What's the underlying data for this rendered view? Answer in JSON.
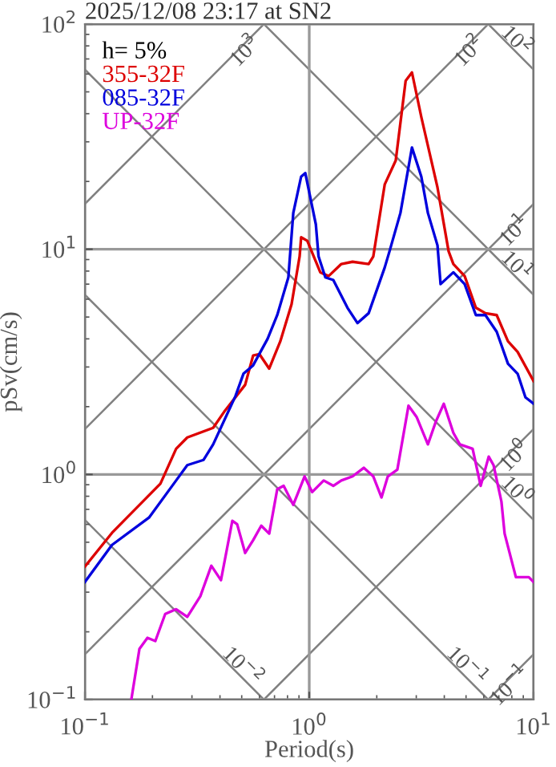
{
  "chart_data": {
    "type": "line",
    "title": "2025/12/08 23:17 at SN2",
    "xlabel": "Period(s)",
    "ylabel": "pSv(cm/s)",
    "legend_title": "h= 5%",
    "legend": "top left",
    "log": "xy",
    "grid": true,
    "xlim": [
      0.1,
      10
    ],
    "ylim": [
      0.1,
      100
    ],
    "xticks": [
      {
        "value": 0.1,
        "label": "10$^{−1}$"
      },
      {
        "value": 1,
        "label": "10$^{0}$"
      },
      {
        "value": 10,
        "label": "10$^{1}$"
      }
    ],
    "yticks": [
      {
        "value": 0.1,
        "label": "10$^{−1}$"
      },
      {
        "value": 1,
        "label": "10$^{0}$"
      },
      {
        "value": 10,
        "label": "10$^{1}$"
      },
      {
        "value": 100,
        "label": "10$^{2}$"
      }
    ],
    "series": [
      {
        "name": "355-32F",
        "color": "#dd0000",
        "x": [
          0.1,
          0.132,
          0.217,
          0.255,
          0.286,
          0.373,
          0.418,
          0.518,
          0.562,
          0.6,
          0.663,
          0.743,
          0.834,
          0.906,
          0.92,
          0.98,
          1.12,
          1.22,
          1.39,
          1.56,
          1.84,
          1.93,
          2.17,
          2.43,
          2.69,
          2.87,
          3.16,
          3.73,
          4.18,
          4.39,
          4.93,
          5.53,
          6.1,
          6.85,
          7.69,
          8.49,
          10
        ],
        "values": [
          0.39,
          0.55,
          0.91,
          1.3,
          1.46,
          1.61,
          1.9,
          2.5,
          3.37,
          3.42,
          2.95,
          3.9,
          5.7,
          9.3,
          11.3,
          10.9,
          7.9,
          7.6,
          8.6,
          8.8,
          8.6,
          9.3,
          19.4,
          24.8,
          56,
          61,
          38.6,
          18.8,
          9.8,
          8.6,
          7.6,
          5.5,
          5.2,
          5.1,
          3.9,
          3.5,
          2.6
        ]
      },
      {
        "name": "085-32F",
        "color": "#0000dd",
        "x": [
          0.1,
          0.132,
          0.193,
          0.255,
          0.286,
          0.338,
          0.373,
          0.469,
          0.509,
          0.562,
          0.652,
          0.72,
          0.807,
          0.849,
          0.92,
          0.96,
          1.07,
          1.1,
          1.18,
          1.28,
          1.48,
          1.64,
          1.84,
          2.17,
          2.28,
          2.55,
          2.87,
          3.16,
          3.38,
          3.73,
          3.85,
          4.39,
          4.93,
          5.53,
          6.1,
          6.85,
          7.69,
          8.49,
          9.2,
          10
        ],
        "values": [
          0.333,
          0.486,
          0.643,
          0.94,
          1.1,
          1.16,
          1.36,
          2.23,
          2.8,
          3.05,
          4.0,
          5.1,
          7.5,
          14.5,
          21,
          21.8,
          12.9,
          9.3,
          7.5,
          7.3,
          5.5,
          4.7,
          5.2,
          8.3,
          9.8,
          14.5,
          28.3,
          21,
          14.5,
          10.4,
          7.0,
          7.9,
          7.0,
          5.1,
          5.1,
          4.3,
          3.1,
          2.8,
          2.2,
          2.06
        ]
      },
      {
        "name": "UP-32F",
        "color": "#dd00dd",
        "x": [
          0.161,
          0.175,
          0.19,
          0.206,
          0.228,
          0.255,
          0.286,
          0.327,
          0.366,
          0.404,
          0.454,
          0.477,
          0.518,
          0.562,
          0.611,
          0.663,
          0.72,
          0.769,
          0.849,
          0.953,
          1.03,
          1.16,
          1.28,
          1.39,
          1.56,
          1.75,
          1.93,
          2.1,
          2.24,
          2.47,
          2.77,
          3.01,
          3.38,
          3.67,
          3.98,
          4.39,
          4.69,
          5.35,
          5.81,
          6.31,
          6.63,
          7.19,
          7.43,
          8.34,
          9.52,
          10
        ],
        "values": [
          0.1,
          0.168,
          0.188,
          0.182,
          0.24,
          0.252,
          0.233,
          0.288,
          0.393,
          0.339,
          0.622,
          0.601,
          0.448,
          0.51,
          0.592,
          0.546,
          0.86,
          0.89,
          0.733,
          0.98,
          0.835,
          0.94,
          0.89,
          0.94,
          0.98,
          1.07,
          0.98,
          0.79,
          0.98,
          1.05,
          2.02,
          1.8,
          1.36,
          1.72,
          2.06,
          1.53,
          1.36,
          1.3,
          0.89,
          1.2,
          1.1,
          0.757,
          0.546,
          0.35,
          0.35,
          0.333
        ]
      },
      {
        "type": "line",
        "color": "#808080",
        "x": [
          0.1,
          0.628
        ],
        "values": [
          15.9,
          100
        ]
      },
      {
        "type": "line",
        "color": "#808080",
        "x": [
          0.1,
          6.28
        ],
        "values": [
          1.59,
          100
        ]
      },
      {
        "type": "line",
        "color": "#808080",
        "x": [
          0.1,
          10
        ],
        "values": [
          0.159,
          15.9
        ]
      },
      {
        "type": "line",
        "color": "#808080",
        "x": [
          0.628,
          10
        ],
        "values": [
          0.1,
          1.59
        ]
      },
      {
        "type": "line",
        "color": "#808080",
        "x": [
          6.28,
          10
        ],
        "values": [
          0.1,
          0.159
        ]
      },
      {
        "type": "line",
        "color": "#808080",
        "x": [
          6.28,
          10
        ],
        "values": [
          100,
          62.8
        ]
      },
      {
        "type": "line",
        "color": "#808080",
        "x": [
          0.628,
          10
        ],
        "values": [
          100,
          6.28
        ]
      },
      {
        "type": "line",
        "color": "#808080",
        "x": [
          0.1,
          10
        ],
        "values": [
          62.8,
          0.628
        ]
      },
      {
        "type": "line",
        "color": "#808080",
        "x": [
          0.1,
          6.28
        ],
        "values": [
          6.28,
          0.1
        ]
      },
      {
        "type": "line",
        "color": "#808080",
        "x": [
          0.1,
          0.628
        ],
        "values": [
          0.628,
          0.1
        ]
      }
    ],
    "annotations": [
      {
        "text": "10$^{3}$",
        "x": 0.628,
        "y": 100
      },
      {
        "text": "10$^{2}$",
        "x": 6.28,
        "y": 100
      },
      {
        "text": "10$^{1}$",
        "x": 10,
        "y": 15.9
      },
      {
        "text": "10$^{0}$",
        "x": 10,
        "y": 1.59
      },
      {
        "text": "10$^{−1}$",
        "x": 10,
        "y": 0.159
      },
      {
        "text": "10$^{2}$",
        "x": 10,
        "y": 62.8
      },
      {
        "text": "10$^{1}$",
        "x": 10,
        "y": 6.28
      },
      {
        "text": "10$^{0}$",
        "x": 10,
        "y": 0.628
      },
      {
        "text": "10$^{−1}$",
        "x": 6.28,
        "y": 0.1
      },
      {
        "text": "10$^{−2}$",
        "x": 0.628,
        "y": 0.1
      }
    ]
  }
}
